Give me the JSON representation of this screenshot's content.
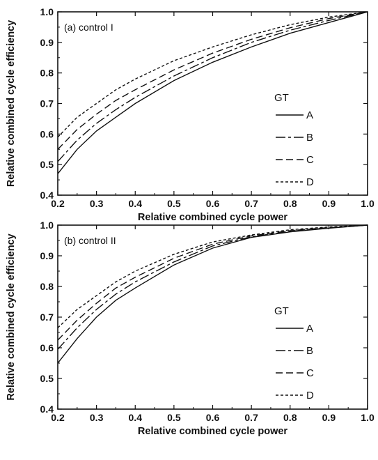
{
  "chart_data": [
    {
      "type": "line",
      "annotation": "(a) control I",
      "xlabel": "Relative combined cycle power",
      "ylabel": "Relative combined cycle efficiency",
      "xlim": [
        0.2,
        1.0
      ],
      "ylim": [
        0.4,
        1.0
      ],
      "xticks": [
        "0.2",
        "0.3",
        "0.4",
        "0.5",
        "0.6",
        "0.7",
        "0.8",
        "0.9",
        "1.0"
      ],
      "yticks": [
        "0.4",
        "0.5",
        "0.6",
        "0.7",
        "0.8",
        "0.9",
        "1.0"
      ],
      "legend_title": "GT",
      "legend_position": "right",
      "x": [
        0.2,
        0.25,
        0.3,
        0.35,
        0.4,
        0.5,
        0.6,
        0.7,
        0.8,
        0.9,
        1.0
      ],
      "series": [
        {
          "name": "A",
          "dash": "solid",
          "values": [
            0.47,
            0.55,
            0.61,
            0.655,
            0.7,
            0.775,
            0.835,
            0.885,
            0.93,
            0.965,
            1.0
          ]
        },
        {
          "name": "B",
          "dash": "long-short",
          "values": [
            0.51,
            0.58,
            0.635,
            0.68,
            0.72,
            0.79,
            0.85,
            0.9,
            0.94,
            0.972,
            1.0
          ]
        },
        {
          "name": "C",
          "dash": "dashed",
          "values": [
            0.55,
            0.615,
            0.665,
            0.71,
            0.745,
            0.81,
            0.865,
            0.91,
            0.948,
            0.978,
            1.0
          ]
        },
        {
          "name": "D",
          "dash": "dotted",
          "values": [
            0.59,
            0.655,
            0.7,
            0.745,
            0.78,
            0.84,
            0.885,
            0.925,
            0.958,
            0.983,
            1.0
          ]
        }
      ]
    },
    {
      "type": "line",
      "annotation": "(b) control II",
      "xlabel": "Relative combined cycle power",
      "ylabel": "Relative combined cycle efficiency",
      "xlim": [
        0.2,
        1.0
      ],
      "ylim": [
        0.4,
        1.0
      ],
      "xticks": [
        "0.2",
        "0.3",
        "0.4",
        "0.5",
        "0.6",
        "0.7",
        "0.8",
        "0.9",
        "1.0"
      ],
      "yticks": [
        "0.4",
        "0.5",
        "0.6",
        "0.7",
        "0.8",
        "0.9",
        "1.0"
      ],
      "legend_title": "GT",
      "legend_position": "right",
      "x": [
        0.2,
        0.25,
        0.3,
        0.35,
        0.4,
        0.5,
        0.6,
        0.7,
        0.8,
        0.9,
        1.0
      ],
      "series": [
        {
          "name": "A",
          "dash": "solid",
          "values": [
            0.55,
            0.63,
            0.7,
            0.755,
            0.795,
            0.87,
            0.925,
            0.96,
            0.978,
            0.99,
            1.0
          ]
        },
        {
          "name": "B",
          "dash": "long-short",
          "values": [
            0.595,
            0.665,
            0.725,
            0.775,
            0.815,
            0.88,
            0.932,
            0.962,
            0.98,
            0.991,
            1.0
          ]
        },
        {
          "name": "C",
          "dash": "dashed",
          "values": [
            0.625,
            0.69,
            0.745,
            0.795,
            0.83,
            0.892,
            0.938,
            0.965,
            0.982,
            0.992,
            1.0
          ]
        },
        {
          "name": "D",
          "dash": "dotted",
          "values": [
            0.665,
            0.725,
            0.77,
            0.815,
            0.85,
            0.905,
            0.945,
            0.968,
            0.985,
            0.994,
            1.0
          ]
        }
      ]
    }
  ]
}
